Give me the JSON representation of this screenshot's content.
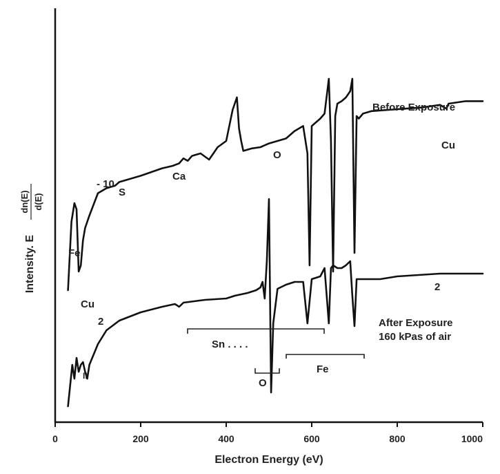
{
  "chart_data": {
    "type": "line",
    "title": "",
    "xlabel": "Electron Energy (eV)",
    "ylabel_prefix": "Intensity. E",
    "ylabel_num": "dn(E)",
    "ylabel_den": "d(E)",
    "xlim": [
      0,
      1000
    ],
    "xticks": [
      0,
      200,
      400,
      600,
      800,
      1000
    ],
    "xtick_labels": [
      "0",
      "200",
      "400",
      "600",
      "800",
      "1000"
    ],
    "y_ticks_shown": false,
    "grid": false,
    "series": [
      {
        "name": "Before Exposure",
        "x": [
          30,
          38,
          45,
          50,
          55,
          60,
          65,
          70,
          80,
          100,
          120,
          140,
          150,
          160,
          200,
          250,
          275,
          290,
          300,
          310,
          320,
          340,
          360,
          380,
          400,
          415,
          425,
          430,
          435,
          440,
          460,
          480,
          500,
          520,
          540,
          550,
          560,
          570,
          580,
          590,
          595,
          600,
          610,
          620,
          630,
          640,
          645,
          650,
          655,
          660,
          670,
          680,
          690,
          695,
          700,
          705,
          710,
          720,
          740,
          780,
          820,
          860,
          900,
          915,
          920,
          960,
          1000
        ],
        "y": [
          0.0,
          0.55,
          0.7,
          0.65,
          0.15,
          0.2,
          0.4,
          0.5,
          0.6,
          0.78,
          0.82,
          0.84,
          0.87,
          0.88,
          0.92,
          0.98,
          1.0,
          1.02,
          1.06,
          1.04,
          1.08,
          1.1,
          1.05,
          1.15,
          1.2,
          1.45,
          1.55,
          1.3,
          1.2,
          1.12,
          1.14,
          1.15,
          1.18,
          1.2,
          1.22,
          1.25,
          1.28,
          1.3,
          1.32,
          1.1,
          0.2,
          1.32,
          1.35,
          1.38,
          1.42,
          1.7,
          1.2,
          0.15,
          1.4,
          1.5,
          1.52,
          1.55,
          1.6,
          1.7,
          0.3,
          1.4,
          1.38,
          1.42,
          1.44,
          1.45,
          1.46,
          1.47,
          1.49,
          1.46,
          1.5,
          1.52,
          1.52
        ]
      },
      {
        "name": "After Exposure",
        "x": [
          30,
          40,
          45,
          50,
          55,
          60,
          65,
          70,
          75,
          80,
          100,
          120,
          150,
          200,
          250,
          280,
          290,
          300,
          350,
          400,
          420,
          450,
          470,
          480,
          485,
          490,
          495,
          500,
          505,
          510,
          520,
          540,
          560,
          580,
          590,
          600,
          620,
          630,
          640,
          645,
          650,
          660,
          670,
          680,
          690,
          695,
          700,
          705,
          710,
          720,
          760,
          800,
          850,
          900,
          950,
          1000
        ],
        "y": [
          -0.3,
          0.0,
          -0.1,
          0.05,
          -0.05,
          0.0,
          0.02,
          -0.05,
          -0.1,
          0.0,
          0.15,
          0.25,
          0.32,
          0.38,
          0.42,
          0.44,
          0.42,
          0.45,
          0.47,
          0.48,
          0.5,
          0.52,
          0.54,
          0.56,
          0.6,
          0.48,
          0.75,
          1.2,
          -0.2,
          0.3,
          0.55,
          0.58,
          0.6,
          0.6,
          0.3,
          0.62,
          0.64,
          0.7,
          0.3,
          0.7,
          0.72,
          0.7,
          0.7,
          0.72,
          0.75,
          0.5,
          0.28,
          0.62,
          0.62,
          0.62,
          0.62,
          0.64,
          0.65,
          0.66,
          0.66,
          0.66
        ]
      }
    ],
    "annotations": [
      {
        "text": "Before Exposure"
      },
      {
        "text": "Cu"
      },
      {
        "text": "O"
      },
      {
        "text": "Ca"
      },
      {
        "text": "S"
      },
      {
        "text": "- 10"
      },
      {
        "text": "Fe"
      },
      {
        "text": "Cu"
      },
      {
        "text": "2"
      },
      {
        "text": "2"
      },
      {
        "text": "After Exposure"
      },
      {
        "text": "160 kPas of air"
      },
      {
        "text": "Sn . . . ."
      },
      {
        "text": "O"
      },
      {
        "text": "Fe"
      },
      {
        "text": "II"
      }
    ]
  }
}
